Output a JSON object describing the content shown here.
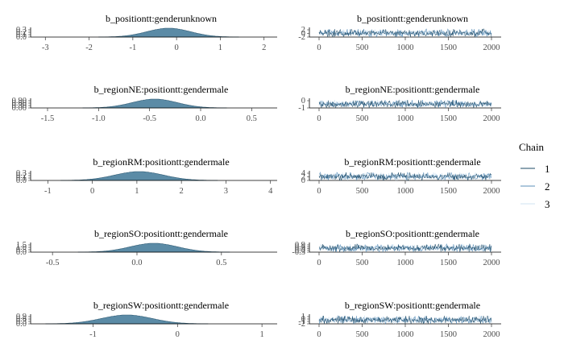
{
  "chart_data": {
    "type": "mcmc-plot",
    "legend": {
      "title": "Chain",
      "entries": [
        {
          "label": "1",
          "color": "#1b4965"
        },
        {
          "label": "2",
          "color": "#5b8fb9"
        },
        {
          "label": "3",
          "color": "#cfe3f2"
        }
      ],
      "placement": "right"
    },
    "density_fill": "#5b8ba6",
    "panels": [
      {
        "parameter": "b_positiontt:genderunknown",
        "density": {
          "mean": -0.18,
          "sd": 0.5,
          "xlim": [
            -3.3,
            2.3
          ],
          "xticks": [
            -3,
            -2,
            -1,
            0,
            1,
            2
          ],
          "ytick_labels": [
            "0.3",
            "0.2",
            "0.1",
            "0.0"
          ]
        },
        "trace": {
          "iterations": 2000,
          "center": 0,
          "spread": 1.3,
          "ytick_labels": [
            "2",
            "0",
            "-2"
          ],
          "xticks": [
            0,
            500,
            1000,
            1500,
            2000
          ]
        }
      },
      {
        "parameter": "b_regionNE:positiontt:gendermale",
        "density": {
          "mean": -0.45,
          "sd": 0.22,
          "xlim": [
            -1.65,
            0.75
          ],
          "xticks": [
            -1.5,
            -1.0,
            -0.5,
            0.0,
            0.5
          ],
          "xtick_labels": [
            "-1.5",
            "-1.0",
            "-0.5",
            "0.0",
            "0.5"
          ],
          "ytick_labels": [
            "0.90",
            "0.60",
            "0.30",
            "0.00"
          ]
        },
        "trace": {
          "iterations": 2000,
          "center": -0.45,
          "spread": 0.6,
          "ytick_labels": [
            "0",
            "-1"
          ],
          "xticks": [
            0,
            500,
            1000,
            1500,
            2000
          ]
        }
      },
      {
        "parameter": "b_regionRM:positiontt:gendermale",
        "density": {
          "mean": 1.05,
          "sd": 0.55,
          "xlim": [
            -1.35,
            4.15
          ],
          "xticks": [
            -1,
            0,
            1,
            2,
            3,
            4
          ],
          "ytick_labels": [
            "0.3",
            "0.2",
            "0.1",
            "0.0"
          ]
        },
        "trace": {
          "iterations": 2000,
          "center": 1.0,
          "spread": 1.5,
          "ytick_labels": [
            "4",
            "2",
            "0"
          ],
          "xticks": [
            0,
            500,
            1000,
            1500,
            2000
          ]
        }
      },
      {
        "parameter": "b_regionSO:positiontt:gendermale",
        "density": {
          "mean": 0.1,
          "sd": 0.14,
          "xlim": [
            -0.62,
            0.83
          ],
          "xticks": [
            -0.5,
            0.0,
            0.5
          ],
          "xtick_labels": [
            "-0.5",
            "0.0",
            "0.5"
          ],
          "ytick_labels": [
            "1.5",
            "1.0",
            "0.5",
            "0.0"
          ]
        },
        "trace": {
          "iterations": 2000,
          "center": 0.1,
          "spread": 0.4,
          "ytick_labels": [
            "0.9",
            "0.6",
            "0.3",
            "0.0",
            "-0.3"
          ],
          "xticks": [
            0,
            500,
            1000,
            1500,
            2000
          ]
        }
      },
      {
        "parameter": "b_regionSW:positiontt:gendermale",
        "density": {
          "mean": -0.6,
          "sd": 0.3,
          "xlim": [
            -1.72,
            1.18
          ],
          "xticks": [
            -1,
            0,
            1
          ],
          "ytick_labels": [
            "0.9",
            "0.6",
            "0.3",
            "0.0"
          ]
        },
        "trace": {
          "iterations": 2000,
          "center": -0.6,
          "spread": 0.9,
          "ytick_labels": [
            "1",
            "0",
            "-1",
            "-2"
          ],
          "xticks": [
            0,
            500,
            1000,
            1500,
            2000
          ]
        }
      }
    ]
  }
}
